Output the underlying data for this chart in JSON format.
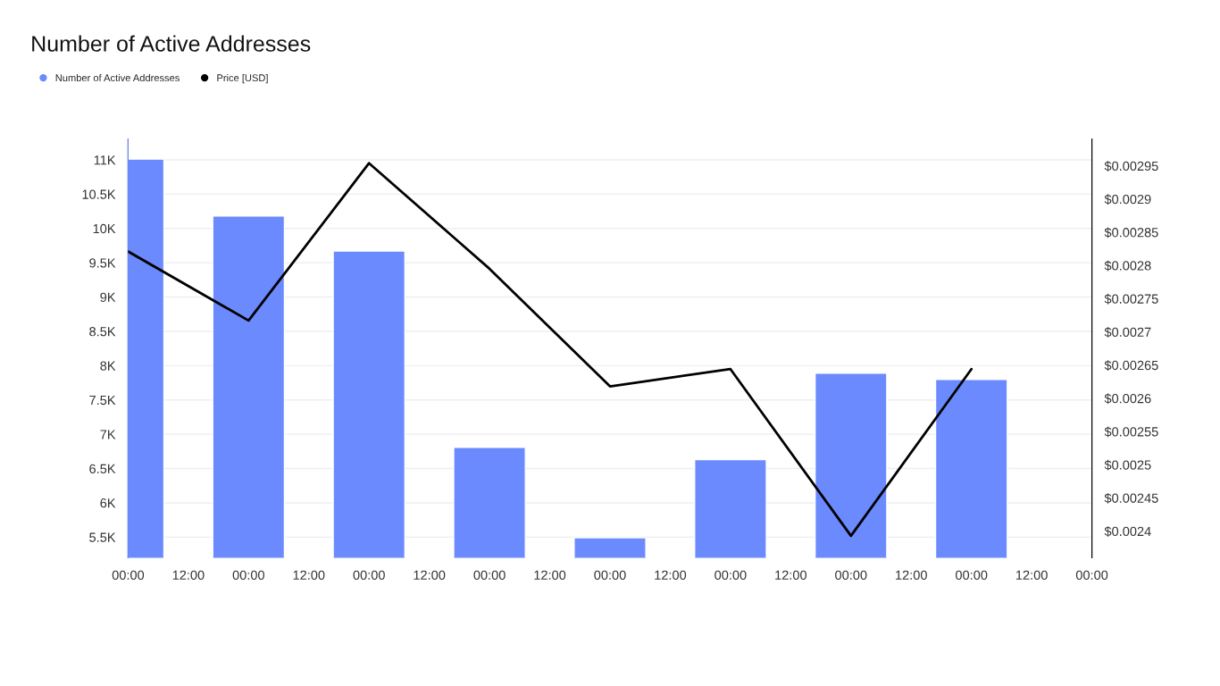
{
  "chart_data": {
    "type": "bar",
    "title": "Number of Active Addresses",
    "categories": [
      "00:00",
      "12:00",
      "00:00",
      "12:00",
      "00:00",
      "12:00",
      "00:00",
      "12:00",
      "00:00",
      "12:00",
      "00:00",
      "12:00",
      "00:00",
      "12:00",
      "00:00",
      "12:00",
      "00:00"
    ],
    "series": [
      {
        "name": "Number of Active Addresses",
        "color": "#6b8afd",
        "values": [
          11010,
          null,
          10180,
          null,
          9670,
          null,
          6810,
          null,
          5490,
          null,
          6630,
          null,
          7890,
          null,
          7800,
          null,
          null
        ]
      },
      {
        "name": "Price [USD]",
        "type": "line",
        "axis": "y2",
        "color": "#000000",
        "values": [
          0.002821,
          null,
          0.002717,
          null,
          0.002954,
          null,
          0.002795,
          null,
          0.002618,
          null,
          0.002644,
          null,
          0.002393,
          null,
          0.002644,
          null,
          null
        ]
      }
    ],
    "ylim": [
      5200,
      11300
    ],
    "yticks": [
      {
        "value": 5500,
        "label": "5.5K"
      },
      {
        "value": 6000,
        "label": "6K"
      },
      {
        "value": 6500,
        "label": "6.5K"
      },
      {
        "value": 7000,
        "label": "7K"
      },
      {
        "value": 7500,
        "label": "7.5K"
      },
      {
        "value": 8000,
        "label": "8K"
      },
      {
        "value": 8500,
        "label": "8.5K"
      },
      {
        "value": 9000,
        "label": "9K"
      },
      {
        "value": 9500,
        "label": "9.5K"
      },
      {
        "value": 10000,
        "label": "10K"
      },
      {
        "value": 10500,
        "label": "10.5K"
      },
      {
        "value": 11000,
        "label": "11K"
      }
    ],
    "y2lim": [
      0.00236,
      0.00299
    ],
    "y2ticks": [
      {
        "value": 0.0024,
        "label": "$0.0024"
      },
      {
        "value": 0.00245,
        "label": "$0.00245"
      },
      {
        "value": 0.0025,
        "label": "$0.0025"
      },
      {
        "value": 0.00255,
        "label": "$0.00255"
      },
      {
        "value": 0.0026,
        "label": "$0.0026"
      },
      {
        "value": 0.00265,
        "label": "$0.00265"
      },
      {
        "value": 0.0027,
        "label": "$0.0027"
      },
      {
        "value": 0.00275,
        "label": "$0.00275"
      },
      {
        "value": 0.0028,
        "label": "$0.0028"
      },
      {
        "value": 0.00285,
        "label": "$0.00285"
      },
      {
        "value": 0.0029,
        "label": "$0.0029"
      },
      {
        "value": 0.00295,
        "label": "$0.00295"
      }
    ],
    "grid": "y",
    "legend": "top left",
    "marker": "none",
    "line_style": "solid"
  }
}
